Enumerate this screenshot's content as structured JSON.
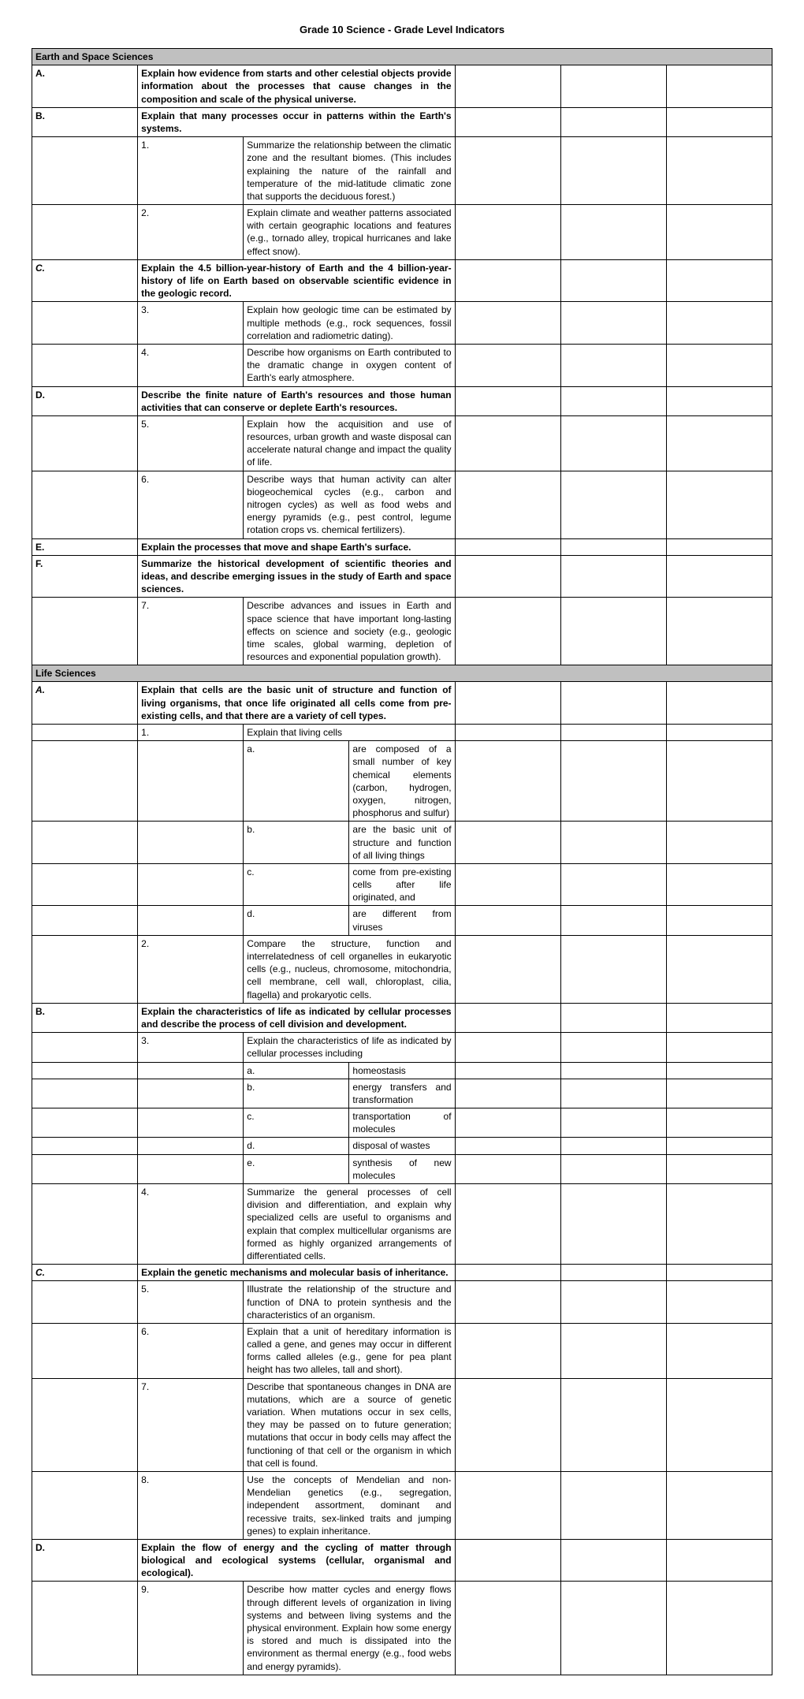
{
  "title": "Grade 10 Science - Grade Level Indicators",
  "colors": {
    "section_bg": "#c0c0c0",
    "border": "#000000",
    "page_bg": "#ffffff"
  },
  "rows": [
    {
      "type": "section",
      "text": "Earth and Space Sciences"
    },
    {
      "type": "letter",
      "letter": "A.",
      "style": "bold",
      "text": "Explain how evidence from starts and other celestial objects provide information about the processes that cause changes in the composition and scale of the physical universe."
    },
    {
      "type": "letter",
      "letter": "B.",
      "style": "bold",
      "text": "Explain that many processes occur in patterns within the Earth's systems."
    },
    {
      "type": "num",
      "num": "1.",
      "text": "Summarize the relationship between the climatic zone and the resultant biomes. (This includes explaining the nature of the rainfall and temperature of the mid-latitude climatic zone that supports the deciduous forest.)"
    },
    {
      "type": "num",
      "num": "2.",
      "text": "Explain climate and weather patterns associated with certain geographic locations and features (e.g., tornado alley, tropical hurricanes and lake effect snow)."
    },
    {
      "type": "letter",
      "letter": "C.",
      "style": "italic",
      "text": "Explain the 4.5 billion-year-history of Earth and the 4 billion-year-history of life on Earth based on observable scientific evidence in the geologic record."
    },
    {
      "type": "num",
      "num": "3.",
      "text": "Explain how geologic time can be estimated by multiple methods (e.g., rock sequences, fossil correlation and radiometric dating)."
    },
    {
      "type": "num",
      "num": "4.",
      "text": "Describe how organisms on Earth contributed to the dramatic change in oxygen content of Earth's early atmosphere."
    },
    {
      "type": "letter",
      "letter": "D.",
      "style": "bold",
      "text": "Describe the finite nature of Earth's resources and those human activities that can conserve or deplete Earth's resources."
    },
    {
      "type": "num",
      "num": "5.",
      "num_large": true,
      "text": "Explain how the acquisition and use of resources, urban growth and waste disposal can accelerate natural change and impact the quality of life."
    },
    {
      "type": "num",
      "num": "6.",
      "text": "Describe ways that human activity can alter biogeochemical cycles (e.g., carbon and nitrogen cycles) as well as food webs and energy pyramids (e.g., pest control, legume rotation crops vs. chemical fertilizers)."
    },
    {
      "type": "letter",
      "letter": "E.",
      "style": "bold",
      "text": "Explain the processes that move and shape Earth's surface."
    },
    {
      "type": "letter",
      "letter": "F.",
      "style": "bold",
      "text": "Summarize the historical development of scientific theories and ideas, and describe emerging issues in the study of Earth and space sciences."
    },
    {
      "type": "num",
      "num": "7.",
      "text": "Describe advances and issues in Earth and space science that have important long-lasting effects on science and society (e.g., geologic time scales, global warming, depletion of resources and exponential population growth)."
    },
    {
      "type": "section",
      "text": "Life Sciences"
    },
    {
      "type": "letter",
      "letter": "A.",
      "style": "italic",
      "text": "Explain that cells are the basic unit of structure and function of living organisms, that once life originated all cells come from pre-existing cells, and that there are a variety of cell types."
    },
    {
      "type": "num",
      "num": "1.",
      "text": "Explain that living cells"
    },
    {
      "type": "sub",
      "sub": "a.",
      "text": "are composed of a small number of key chemical elements (carbon, hydrogen, oxygen, nitrogen, phosphorus and sulfur)"
    },
    {
      "type": "sub",
      "sub": "b.",
      "text": "are the basic unit of structure and function of all living things"
    },
    {
      "type": "sub",
      "sub": "c.",
      "text": "come from pre-existing cells after life originated, and"
    },
    {
      "type": "sub",
      "sub": "d.",
      "text": "are different from viruses"
    },
    {
      "type": "num",
      "num": "2.",
      "text": "Compare the structure, function and interrelatedness of cell organelles in eukaryotic cells (e.g., nucleus, chromosome, mitochondria, cell membrane, cell wall, chloroplast, cilia, flagella) and prokaryotic cells."
    },
    {
      "type": "letter",
      "letter": "B.",
      "style": "bold",
      "text": "Explain the characteristics of life as indicated by cellular processes and describe the process of cell division and development."
    },
    {
      "type": "num",
      "num": "3.",
      "text": "Explain the characteristics of life as indicated by cellular processes including"
    },
    {
      "type": "sub",
      "sub": "a.",
      "text": "homeostasis"
    },
    {
      "type": "sub",
      "sub": "b.",
      "text": "energy transfers and transformation"
    },
    {
      "type": "sub",
      "sub": "c.",
      "text": "transportation of molecules"
    },
    {
      "type": "sub",
      "sub": "d.",
      "text": "disposal of wastes"
    },
    {
      "type": "sub",
      "sub": "e.",
      "text": "synthesis of new molecules"
    },
    {
      "type": "num",
      "num": "4.",
      "num_large": true,
      "text": "Summarize the general processes of cell division and differentiation, and explain why specialized cells are useful to organisms and explain that complex multicellular organisms are formed as highly organized arrangements of differentiated cells."
    },
    {
      "type": "letter",
      "letter": "C.",
      "style": "italic",
      "text": "Explain the genetic mechanisms and molecular basis of inheritance."
    },
    {
      "type": "num",
      "num": "5.",
      "text": "Illustrate the relationship of the structure and function of DNA to protein synthesis and the characteristics of an organism."
    },
    {
      "type": "num",
      "num": "6.",
      "text": "Explain that a unit of hereditary information is called a gene, and genes may occur in different forms called alleles (e.g., gene for pea plant height has two alleles, tall and short)."
    },
    {
      "type": "num",
      "num": "7.",
      "text": "Describe that spontaneous changes in DNA are mutations, which are a source of genetic variation.  When mutations occur in sex cells, they may be passed on to future generation; mutations that occur in body cells may affect the functioning of that cell or the organism in which that cell is found."
    },
    {
      "type": "num",
      "num": "8.",
      "text": "Use the concepts of Mendelian and non-Mendelian genetics (e.g., segregation, independent assortment, dominant and recessive traits, sex-linked traits and jumping genes) to explain inheritance."
    },
    {
      "type": "letter",
      "letter": "D.",
      "style": "bold",
      "text": "Explain the flow of energy and the cycling of matter through biological and ecological systems (cellular, organismal and ecological)."
    },
    {
      "type": "num",
      "num": "9.",
      "text": "Describe how matter cycles and energy flows through different levels of organization in living systems and between living systems and the physical environment.  Explain how some energy is stored and much is dissipated into the environment as thermal energy (e.g., food webs and energy pyramids)."
    }
  ]
}
